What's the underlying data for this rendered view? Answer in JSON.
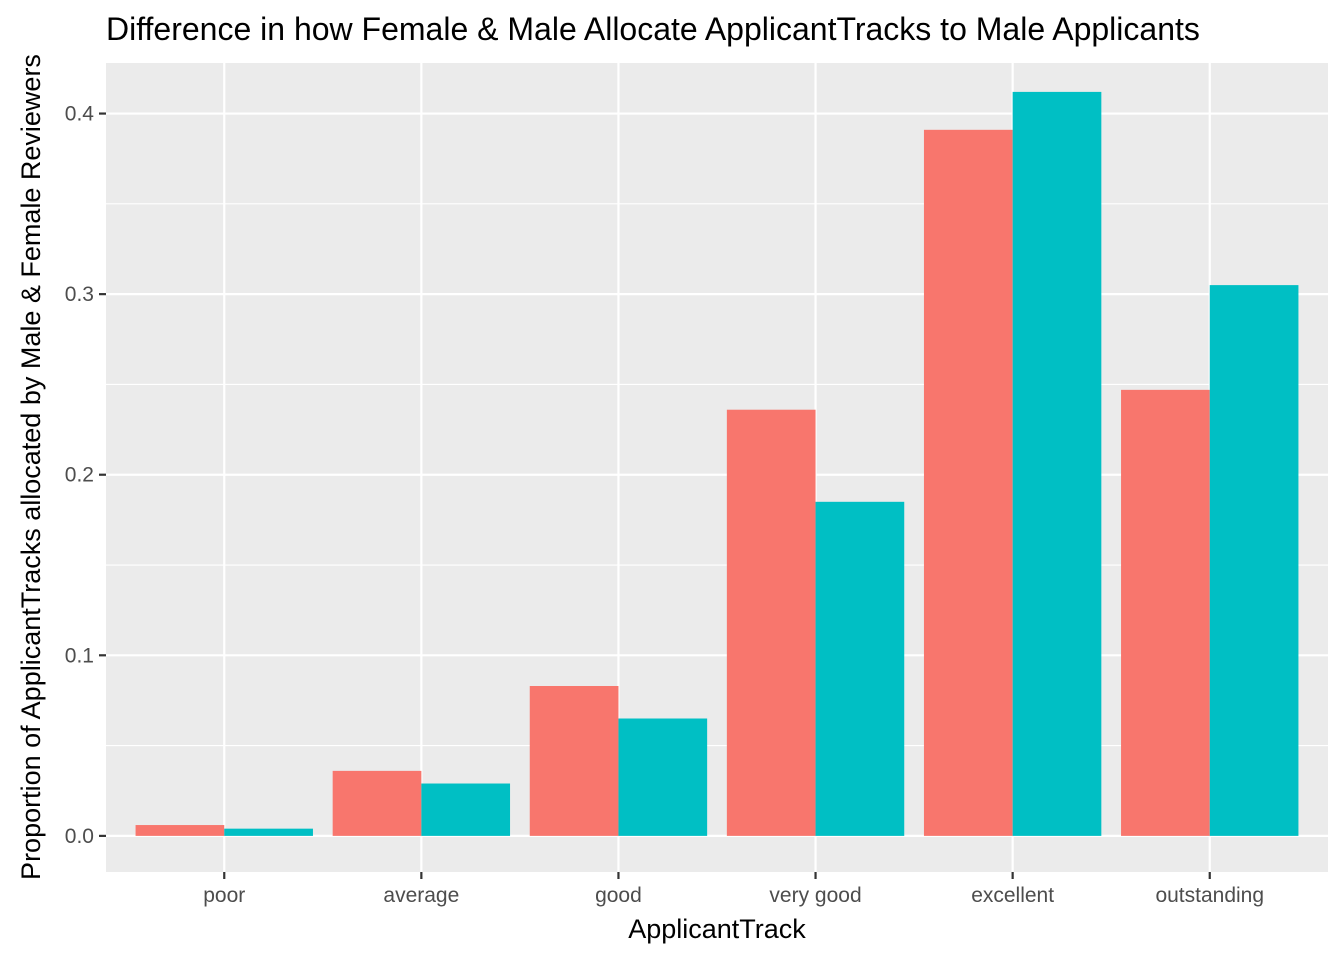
{
  "chart_data": {
    "type": "bar",
    "title": "Difference in how Female & Male Allocate ApplicantTracks to Male Applicants",
    "xlabel": "ApplicantTrack",
    "ylabel": "Proportion of ApplicantTracks allocated by Male & Female Reviewers",
    "categories": [
      "poor",
      "average",
      "good",
      "very good",
      "excellent",
      "outstanding"
    ],
    "series": [
      {
        "color": "#F8766D",
        "values": [
          0.006,
          0.036,
          0.083,
          0.236,
          0.391,
          0.247
        ]
      },
      {
        "color": "#00BFC4",
        "values": [
          0.004,
          0.029,
          0.065,
          0.185,
          0.412,
          0.305
        ]
      }
    ],
    "ylim": [
      -0.02,
      0.428
    ],
    "yticks": [
      0.0,
      0.1,
      0.2,
      0.3,
      0.4
    ],
    "ytick_labels": [
      "0.0",
      "0.1",
      "0.2",
      "0.3",
      "0.4"
    ],
    "grid": true,
    "legend": "none",
    "panel_color": "#EBEBEB",
    "grid_color": "#FFFFFF"
  }
}
